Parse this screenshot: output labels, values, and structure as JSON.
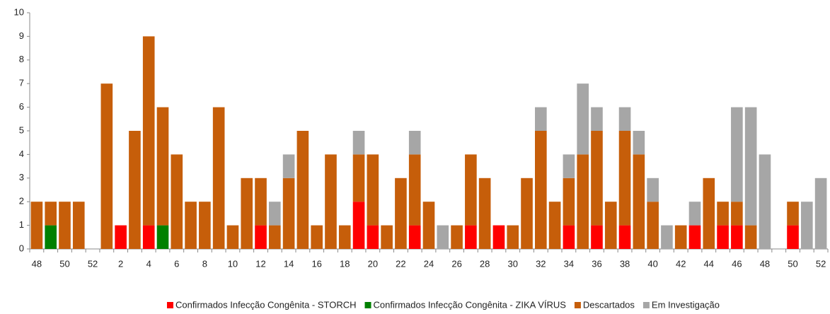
{
  "chart_data": {
    "type": "stacked_bar",
    "categories": [
      "48",
      null,
      "50",
      null,
      "52",
      null,
      "2",
      null,
      "4",
      null,
      "6",
      null,
      "8",
      null,
      "10",
      null,
      "12",
      null,
      "14",
      null,
      "16",
      null,
      "18",
      null,
      "20",
      null,
      "22",
      null,
      "24",
      null,
      "26",
      null,
      "28",
      null,
      "30",
      null,
      "32",
      null,
      "34",
      null,
      "36",
      null,
      "38",
      null,
      "40",
      null,
      "42",
      null,
      "44",
      null,
      "46",
      null,
      "48",
      null,
      "50",
      null,
      "52"
    ],
    "series": [
      {
        "name": "Confirmados Infecção Congênita - STORCH",
        "color": "#ff0000",
        "values": [
          0,
          0,
          0,
          0,
          0,
          0,
          1,
          0,
          1,
          0,
          0,
          0,
          0,
          0,
          0,
          0,
          1,
          0,
          0,
          0,
          0,
          0,
          0,
          2,
          1,
          0,
          0,
          1,
          0,
          0,
          0,
          1,
          0,
          1,
          0,
          0,
          0,
          0,
          1,
          0,
          1,
          0,
          1,
          0,
          0,
          0,
          0,
          1,
          0,
          1,
          1,
          0,
          0,
          0,
          1,
          0,
          0
        ]
      },
      {
        "name": "Confirmados Infecção Congênita - ZIKA VÍRUS",
        "color": "#008000",
        "values": [
          0,
          1,
          0,
          0,
          0,
          0,
          0,
          0,
          0,
          1,
          0,
          0,
          0,
          0,
          0,
          0,
          0,
          0,
          0,
          0,
          0,
          0,
          0,
          0,
          0,
          0,
          0,
          0,
          0,
          0,
          0,
          0,
          0,
          0,
          0,
          0,
          0,
          0,
          0,
          0,
          0,
          0,
          0,
          0,
          0,
          0,
          0,
          0,
          0,
          0,
          0,
          0,
          0,
          0,
          0,
          0,
          0
        ]
      },
      {
        "name": "Descartados",
        "color": "#c65e0a",
        "values": [
          2,
          1,
          2,
          2,
          0,
          7,
          0,
          5,
          8,
          5,
          4,
          2,
          2,
          6,
          1,
          3,
          2,
          1,
          3,
          5,
          1,
          4,
          1,
          2,
          3,
          1,
          3,
          3,
          2,
          0,
          1,
          3,
          3,
          0,
          1,
          3,
          5,
          2,
          2,
          4,
          4,
          2,
          4,
          4,
          2,
          0,
          1,
          0,
          3,
          1,
          1,
          1,
          0,
          0,
          1,
          0,
          0
        ]
      },
      {
        "name": "Em Investigação",
        "color": "#a6a6a6",
        "values": [
          0,
          0,
          0,
          0,
          0,
          0,
          0,
          0,
          0,
          0,
          0,
          0,
          0,
          0,
          0,
          0,
          0,
          1,
          1,
          0,
          0,
          0,
          0,
          1,
          0,
          0,
          0,
          1,
          0,
          1,
          0,
          0,
          0,
          0,
          0,
          0,
          1,
          0,
          1,
          3,
          1,
          0,
          1,
          1,
          1,
          1,
          0,
          1,
          0,
          0,
          4,
          5,
          4,
          0,
          0,
          2,
          3
        ]
      }
    ],
    "ylim": [
      0,
      10
    ],
    "yticks": [
      0,
      1,
      2,
      3,
      4,
      5,
      6,
      7,
      8,
      9,
      10
    ],
    "grid": false,
    "legend": "bottom"
  }
}
